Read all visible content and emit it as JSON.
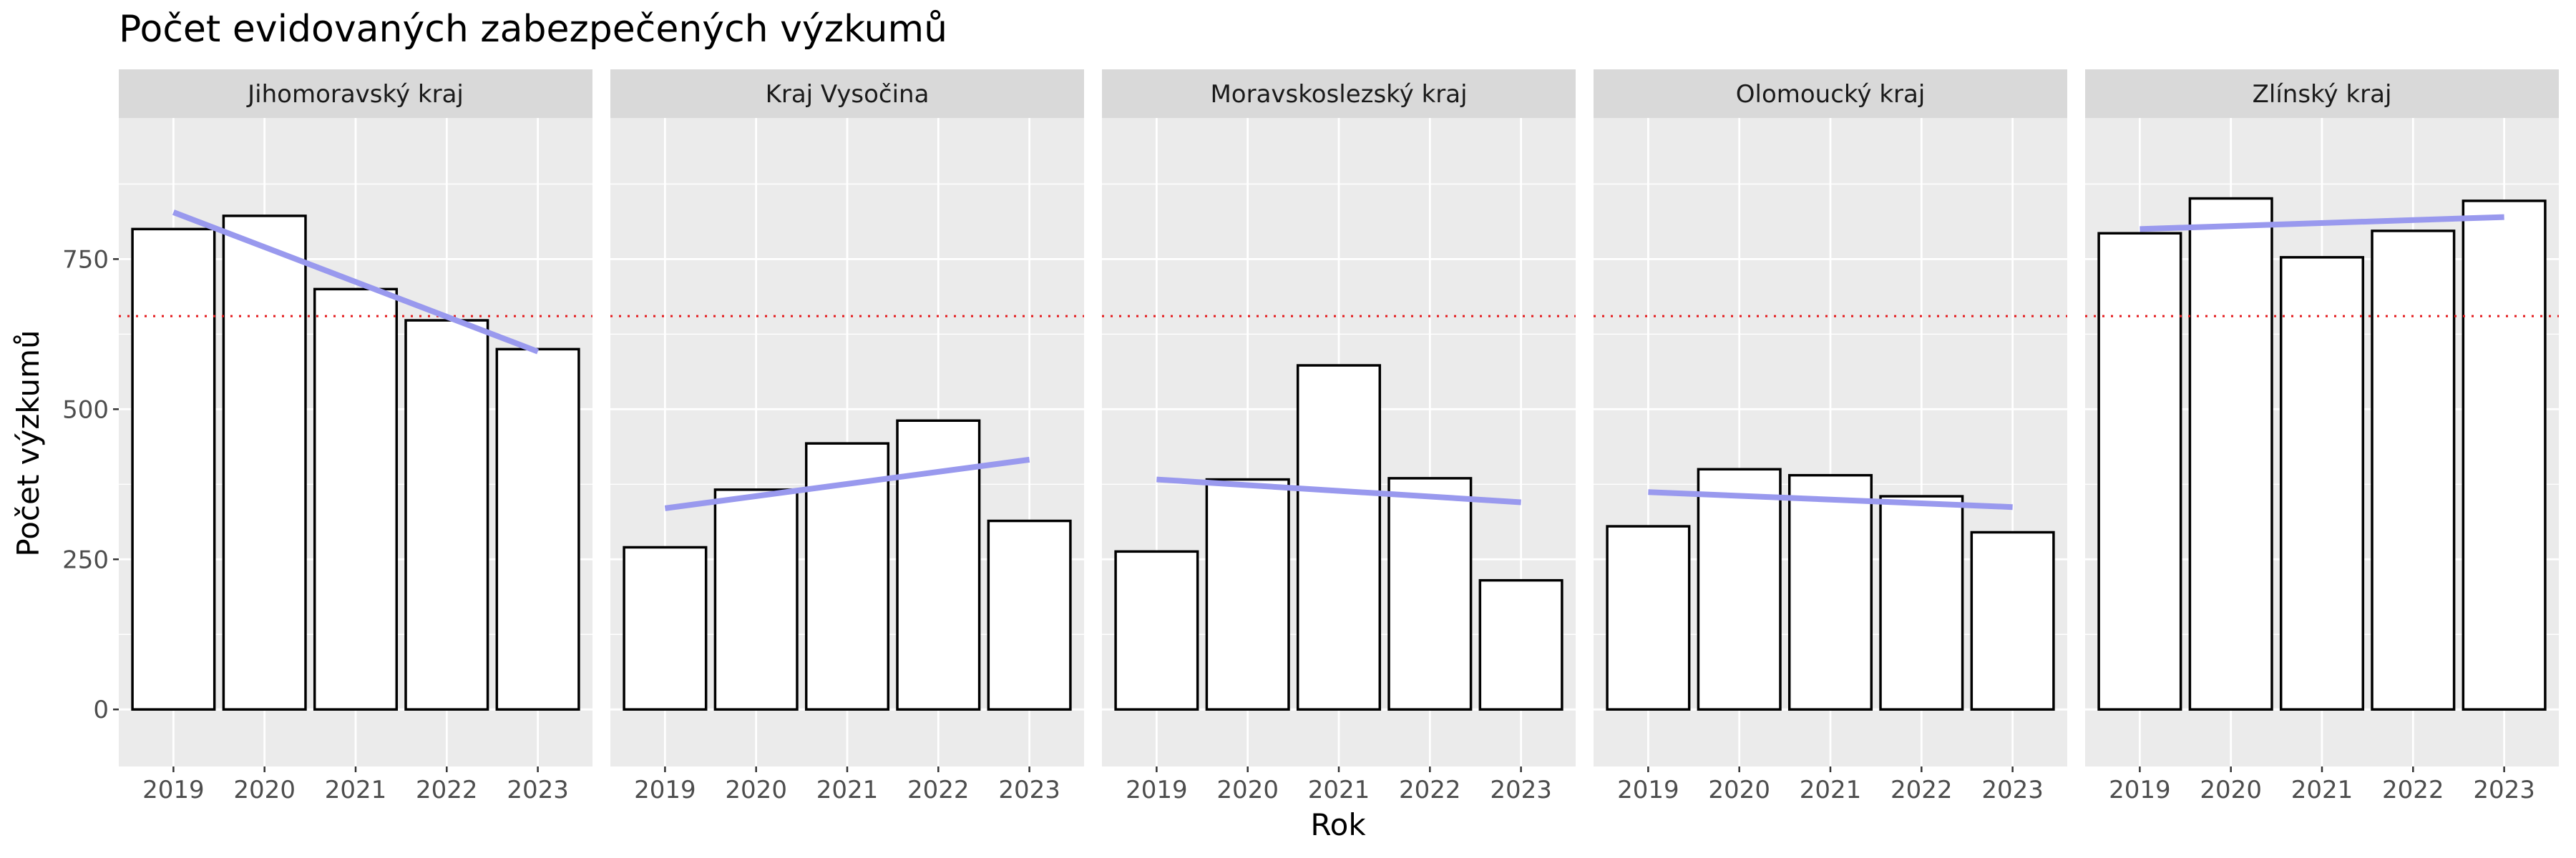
{
  "chart_data": {
    "type": "bar",
    "title": "Počet evidovaných zabezpečených výzkumů",
    "xlabel": "Rok",
    "ylabel": "Počet výzkumů",
    "categories": [
      "2019",
      "2020",
      "2021",
      "2022",
      "2023"
    ],
    "y_ticks": [
      0,
      250,
      500,
      750
    ],
    "y_tick_labels": [
      "0",
      "250",
      "500",
      "750"
    ],
    "ylim": [
      -95,
      985
    ],
    "reference_line": {
      "value": 655,
      "style": "dotted",
      "color": "#e41a1c"
    },
    "trend_color": "#9999ee",
    "bar_fill": "#ffffff",
    "bar_stroke": "#000000",
    "panel_background": "#ebebeb",
    "strip_background": "#d9d9d9",
    "grid": true,
    "panels": [
      {
        "name": "Jihomoravský kraj",
        "values": [
          800,
          822,
          700,
          648,
          600
        ],
        "trend": [
          828,
          596
        ]
      },
      {
        "name": "Kraj Vysočina",
        "values": [
          270,
          366,
          443,
          481,
          314
        ],
        "trend": [
          335,
          416
        ]
      },
      {
        "name": "Moravskoslezský kraj",
        "values": [
          263,
          383,
          573,
          385,
          215
        ],
        "trend": [
          383,
          345
        ]
      },
      {
        "name": "Olomoucký kraj",
        "values": [
          305,
          400,
          390,
          355,
          295
        ],
        "trend": [
          362,
          337
        ]
      },
      {
        "name": "Zlínský kraj",
        "values": [
          793,
          851,
          753,
          797,
          847
        ],
        "trend": [
          800,
          820
        ]
      }
    ]
  }
}
